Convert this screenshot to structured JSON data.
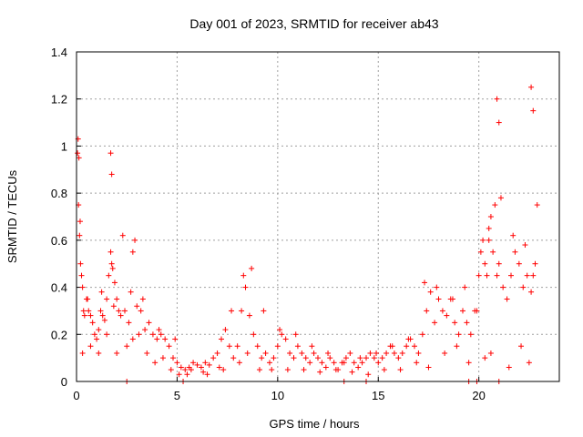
{
  "chart_data": {
    "type": "scatter",
    "title": "Day 001 of 2023, SRMTID for receiver ab43",
    "xlabel": "GPS time / hours",
    "ylabel": "SRMTID / TECUs",
    "xlim": [
      0,
      24
    ],
    "ylim": [
      0,
      1.4
    ],
    "x_ticks": [
      0,
      5,
      10,
      15,
      20
    ],
    "x_tick_labels": [
      "0",
      "5",
      "10",
      "15",
      "20"
    ],
    "y_ticks": [
      0,
      0.2,
      0.4,
      0.6,
      0.8,
      1.0,
      1.2,
      1.4
    ],
    "y_tick_labels": [
      "0",
      "0.2",
      "0.4",
      "0.6",
      "0.8",
      "1",
      "1.2",
      "1.4"
    ],
    "grid": true,
    "marker": "+",
    "color": "#ff0000",
    "series": [
      {
        "name": "SRMTID",
        "x": [
          0.05,
          0.1,
          0.15,
          0.2,
          0.25,
          0.3,
          0.35,
          0.4,
          0.5,
          0.6,
          0.7,
          0.8,
          0.9,
          1.0,
          1.1,
          1.2,
          1.3,
          1.4,
          1.5,
          1.6,
          1.7,
          1.75,
          1.8,
          1.9,
          2.0,
          2.1,
          2.2,
          2.4,
          2.6,
          2.8,
          2.9,
          3.0,
          3.2,
          3.4,
          3.6,
          3.8,
          4.0,
          4.2,
          4.4,
          4.6,
          4.8,
          5.0,
          5.2,
          5.4,
          5.6,
          5.8,
          6.0,
          6.2,
          6.4,
          6.6,
          6.8,
          7.0,
          7.2,
          7.4,
          7.6,
          7.8,
          8.0,
          8.2,
          8.4,
          8.6,
          8.8,
          9.0,
          9.2,
          9.4,
          9.6,
          9.8,
          10.0,
          10.2,
          10.4,
          10.6,
          10.8,
          11.0,
          11.2,
          11.4,
          11.6,
          11.8,
          12.0,
          12.2,
          12.4,
          12.6,
          12.8,
          13.0,
          13.2,
          13.4,
          13.6,
          13.8,
          14.0,
          14.2,
          14.4,
          14.6,
          14.8,
          15.0,
          15.2,
          15.4,
          15.6,
          15.8,
          16.0,
          16.2,
          16.4,
          16.6,
          16.8,
          17.0,
          17.2,
          17.4,
          17.6,
          17.8,
          18.0,
          18.2,
          18.4,
          18.6,
          18.8,
          19.0,
          19.2,
          19.4,
          19.6,
          19.8,
          20.0,
          20.1,
          20.2,
          20.3,
          20.4,
          20.5,
          20.6,
          20.7,
          20.8,
          20.9,
          21.0,
          21.2,
          21.4,
          21.6,
          21.8,
          22.0,
          22.2,
          22.4,
          22.6,
          22.7,
          22.8,
          0.08,
          0.12,
          1.7,
          1.75,
          20.9,
          21.0,
          22.6,
          22.7,
          0.3,
          0.7,
          1.1,
          1.5,
          2.0,
          2.5,
          2.8,
          3.1,
          3.5,
          3.9,
          4.3,
          4.7,
          5.1,
          5.5,
          6.5,
          7.3,
          8.1,
          8.5,
          9.1,
          9.7,
          10.5,
          11.3,
          12.1,
          12.9,
          13.7,
          14.5,
          15.3,
          16.1,
          16.9,
          17.5,
          18.3,
          18.9,
          19.5,
          20.3,
          20.6,
          21.5,
          22.1,
          22.5,
          0.18,
          0.55,
          1.25,
          1.85,
          2.3,
          2.7,
          3.3,
          4.1,
          4.9,
          5.7,
          6.3,
          7.1,
          7.7,
          8.3,
          8.7,
          9.3,
          10.1,
          10.9,
          11.7,
          12.5,
          13.3,
          14.1,
          14.9,
          15.7,
          16.5,
          17.3,
          17.9,
          18.7,
          19.3,
          19.9,
          20.5,
          21.1,
          21.7,
          22.3,
          22.9
        ],
        "y": [
          0.97,
          0.75,
          0.62,
          0.5,
          0.45,
          0.4,
          0.3,
          0.28,
          0.35,
          0.3,
          0.28,
          0.25,
          0.2,
          0.18,
          0.22,
          0.3,
          0.28,
          0.26,
          0.35,
          0.45,
          0.55,
          0.5,
          0.48,
          0.42,
          0.35,
          0.3,
          0.28,
          0.3,
          0.25,
          0.55,
          0.6,
          0.32,
          0.3,
          0.22,
          0.25,
          0.2,
          0.18,
          0.2,
          0.18,
          0.15,
          0.1,
          0.08,
          0.06,
          0.05,
          0.06,
          0.08,
          0.07,
          0.06,
          0.08,
          0.07,
          0.1,
          0.12,
          0.18,
          0.22,
          0.15,
          0.1,
          0.15,
          0.3,
          0.4,
          0.28,
          0.2,
          0.15,
          0.1,
          0.12,
          0.08,
          0.1,
          0.15,
          0.2,
          0.18,
          0.12,
          0.1,
          0.15,
          0.12,
          0.1,
          0.08,
          0.12,
          0.1,
          0.08,
          0.06,
          0.1,
          0.08,
          0.05,
          0.08,
          0.1,
          0.12,
          0.08,
          0.06,
          0.08,
          0.1,
          0.12,
          0.1,
          0.08,
          0.1,
          0.12,
          0.15,
          0.12,
          0.1,
          0.12,
          0.15,
          0.18,
          0.15,
          0.12,
          0.2,
          0.3,
          0.38,
          0.25,
          0.35,
          0.3,
          0.28,
          0.35,
          0.25,
          0.2,
          0.3,
          0.25,
          0.2,
          0.3,
          0.45,
          0.55,
          0.6,
          0.5,
          0.45,
          0.65,
          0.7,
          0.55,
          0.75,
          0.45,
          0.5,
          0.4,
          0.35,
          0.45,
          0.55,
          0.5,
          0.4,
          0.45,
          0.38,
          0.45,
          0.5,
          1.03,
          0.95,
          0.97,
          0.88,
          1.2,
          1.1,
          1.25,
          1.15,
          0.12,
          0.15,
          0.12,
          0.2,
          0.12,
          0.15,
          0.18,
          0.2,
          0.12,
          0.08,
          0.1,
          0.05,
          0.03,
          0.03,
          0.03,
          0.05,
          0.08,
          0.12,
          0.05,
          0.05,
          0.05,
          0.05,
          0.04,
          0.05,
          0.04,
          0.03,
          0.05,
          0.05,
          0.08,
          0.06,
          0.12,
          0.15,
          0.08,
          0.1,
          0.12,
          0.06,
          0.15,
          0.08,
          0.68,
          0.35,
          0.38,
          0.32,
          0.62,
          0.38,
          0.35,
          0.22,
          0.18,
          0.05,
          0.04,
          0.06,
          0.3,
          0.45,
          0.48,
          0.3,
          0.22,
          0.2,
          0.15,
          0.12,
          0.08,
          0.1,
          0.12,
          0.15,
          0.18,
          0.42,
          0.4,
          0.35,
          0.4,
          0.3,
          0.6,
          0.78,
          0.62,
          0.58,
          0.75
        ],
        "x_zero": [
          2.5,
          5.3,
          13.3,
          14.4,
          19.5,
          19.9,
          21.0
        ]
      }
    ]
  }
}
